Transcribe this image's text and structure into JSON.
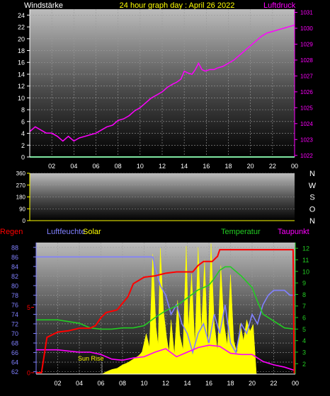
{
  "header": {
    "left_title": "Windstärke",
    "center_title": "24 hour graph day : April 26 2022",
    "right_title": "Luftdruck"
  },
  "colors": {
    "background": "#000000",
    "wind": "#00cc44",
    "pressure": "#ff00ff",
    "humidity": "#8080ff",
    "temperature": "#22cc22",
    "dewpoint": "#ff00ff",
    "rain": "#ff0000",
    "solar": "#ffff00",
    "axis_white": "#ffffff",
    "title_yellow": "#ffff00"
  },
  "chart_data": [
    {
      "type": "line",
      "title": "24 hour graph day : April 26 2022",
      "x_ticks": [
        "02",
        "04",
        "06",
        "08",
        "10",
        "12",
        "14",
        "16",
        "18",
        "20",
        "22",
        "00"
      ],
      "xlim": [
        0,
        24
      ],
      "left_axis": {
        "label": "Windstärke",
        "ticks": [
          0,
          2,
          4,
          6,
          8,
          10,
          12,
          14,
          16,
          18,
          20,
          22,
          24
        ],
        "ylim": [
          0,
          25
        ]
      },
      "right_axis": {
        "label": "Luftdruck",
        "ticks": [
          1022,
          1023,
          1024,
          1025,
          1026,
          1027,
          1028,
          1029,
          1030,
          1031
        ],
        "ylim": [
          1021.9,
          1031.2
        ]
      },
      "series": [
        {
          "name": "Windstärke",
          "axis": "left",
          "x": [
            0,
            24
          ],
          "y": [
            0,
            0
          ]
        },
        {
          "name": "Luftdruck",
          "axis": "right",
          "x": [
            0,
            0.5,
            1,
            1.5,
            2,
            2.5,
            3,
            3.5,
            4,
            4.5,
            5,
            5.5,
            6,
            6.5,
            7,
            7.5,
            8,
            8.5,
            9,
            9.5,
            10,
            10.5,
            11,
            11.5,
            12,
            12.5,
            13,
            13.3,
            13.7,
            14,
            14.3,
            14.7,
            15,
            15.3,
            15.6,
            15.9,
            16.3,
            16.7,
            17,
            17.5,
            18,
            18.5,
            19,
            19.5,
            20,
            20.5,
            21,
            21.5,
            22,
            22.5,
            23,
            23.5,
            24
          ],
          "y": [
            1023.5,
            1023.8,
            1023.6,
            1023.4,
            1023.4,
            1023.2,
            1022.9,
            1023.2,
            1022.9,
            1023.1,
            1023.2,
            1023.3,
            1023.4,
            1023.6,
            1023.8,
            1023.9,
            1024.2,
            1024.3,
            1024.5,
            1024.8,
            1025.0,
            1025.3,
            1025.6,
            1025.8,
            1026.0,
            1026.3,
            1026.5,
            1026.6,
            1026.8,
            1027.3,
            1027.2,
            1027.1,
            1027.4,
            1027.8,
            1027.4,
            1027.3,
            1027.4,
            1027.4,
            1027.5,
            1027.6,
            1027.8,
            1028.0,
            1028.3,
            1028.6,
            1028.9,
            1029.2,
            1029.5,
            1029.7,
            1029.8,
            1029.9,
            1030.0,
            1030.1,
            1030.2
          ]
        }
      ]
    },
    {
      "type": "scatter",
      "x_ticks": [],
      "xlim": [
        0,
        24
      ],
      "left_axis": {
        "label": "",
        "ticks": [
          0,
          90,
          180,
          270,
          360
        ],
        "ylim": [
          0,
          360
        ]
      },
      "right_labels": [
        "N",
        "W",
        "S",
        "O",
        "N"
      ],
      "series": []
    },
    {
      "type": "line",
      "x_ticks": [
        "02",
        "04",
        "06",
        "08",
        "10",
        "12",
        "14",
        "16",
        "18",
        "20",
        "22",
        "00"
      ],
      "xlim": [
        0,
        24
      ],
      "legend_top": {
        "rain": "Regen",
        "humidity": "Luftfeuchte",
        "solar": "Solar",
        "temperature": "Temperatur",
        "dewpoint": "Taupunkt"
      },
      "left_axis": {
        "label": "Luftfeuchte",
        "ticks": [
          62,
          64,
          66,
          68,
          70,
          72,
          74,
          76,
          78,
          80,
          82,
          84,
          86,
          88
        ],
        "ylim": [
          61.5,
          89
        ]
      },
      "right_axis": {
        "label": "Temperatur",
        "ticks": [
          2,
          3,
          4,
          5,
          6,
          7,
          8,
          9,
          10,
          11,
          12
        ],
        "ylim": [
          1.1,
          12.5
        ]
      },
      "rain_ticks": [
        "5",
        "0"
      ],
      "annotation": {
        "text": "Sun Rise",
        "x": 6.1
      },
      "series": [
        {
          "name": "Luftfeuchte",
          "axis": "left",
          "x": [
            0,
            4,
            8,
            10.8,
            11,
            11.5,
            12,
            12.5,
            13,
            13.5,
            14,
            14.5,
            15,
            15.5,
            16,
            16.5,
            17,
            17.5,
            18,
            18.5,
            19,
            19.5,
            20,
            20.5,
            21,
            21.5,
            22,
            22.5,
            23,
            23.5,
            24
          ],
          "y": [
            86,
            86,
            86,
            86,
            84,
            80,
            78,
            74,
            76,
            72,
            70,
            66,
            70,
            72,
            68,
            74,
            70,
            76,
            68,
            66,
            72,
            70,
            74,
            72,
            76,
            78,
            79,
            79,
            79,
            78,
            78
          ]
        },
        {
          "name": "Temperatur",
          "axis": "right",
          "x": [
            0,
            2,
            4,
            5,
            6,
            7,
            8,
            9,
            10,
            11,
            12,
            13,
            14,
            15,
            16,
            16.5,
            17,
            17.5,
            18,
            19,
            20,
            20.5,
            21,
            22,
            23,
            24
          ],
          "y": [
            5.8,
            5.8,
            5.5,
            5.1,
            5.0,
            5.0,
            5.1,
            5.1,
            5.3,
            6.0,
            6.6,
            7.0,
            7.7,
            8.4,
            8.8,
            9.4,
            10.1,
            10.4,
            10.4,
            9.6,
            8.6,
            7.4,
            6.3,
            5.7,
            5.1,
            5.0
          ]
        },
        {
          "name": "Taupunkt",
          "axis": "right",
          "x": [
            0,
            1,
            2,
            3,
            4,
            5,
            5.5,
            6,
            7,
            8,
            9,
            10,
            11,
            12,
            13,
            14,
            15,
            16,
            17,
            18,
            19,
            20,
            21,
            22,
            23,
            24
          ],
          "y": [
            3.2,
            3.2,
            3.2,
            3.1,
            3.0,
            3.0,
            2.9,
            2.8,
            2.4,
            2.3,
            2.5,
            2.6,
            3.0,
            3.3,
            2.6,
            3.0,
            3.4,
            3.6,
            3.5,
            2.9,
            2.8,
            2.8,
            2.2,
            1.9,
            1.7,
            1.4
          ]
        },
        {
          "name": "Regen",
          "axis": "rain",
          "x": [
            0,
            0.5,
            1,
            2,
            3,
            4,
            5,
            5.5,
            6,
            6.5,
            7,
            7.5,
            8,
            8.5,
            9,
            10,
            11,
            12,
            13,
            14,
            14.5,
            15,
            15.5,
            16,
            16.3,
            16.8,
            17,
            17.5,
            18,
            19,
            20,
            21,
            22,
            23,
            23.8,
            23.9,
            24
          ],
          "y": [
            0,
            0,
            2.7,
            3.1,
            3.2,
            3.4,
            3.4,
            3.6,
            4.2,
            4.6,
            4.7,
            4.8,
            5.3,
            5.8,
            6.8,
            7.3,
            7.4,
            7.6,
            7.7,
            7.7,
            7.7,
            8.2,
            8.5,
            8.5,
            8.5,
            8.9,
            9.4,
            9.4,
            9.4,
            9.4,
            9.4,
            9.4,
            9.4,
            9.4,
            9.4,
            0,
            0
          ]
        },
        {
          "name": "Solar",
          "axis": "right",
          "fill": true,
          "x": [
            6.1,
            6.5,
            7,
            7.5,
            8,
            8.5,
            9,
            9.5,
            9.8,
            10.2,
            10.5,
            10.8,
            11.1,
            11.3,
            11.5,
            11.8,
            12.1,
            12.3,
            12.5,
            12.8,
            13.1,
            13.3,
            13.6,
            13.9,
            14.1,
            14.4,
            14.7,
            15.0,
            15.3,
            15.6,
            15.9,
            16.2,
            16.5,
            16.8,
            17.1,
            17.4,
            17.7,
            18.0,
            18.3,
            18.6,
            18.9,
            19.2,
            19.5,
            19.8,
            20.1,
            20.4
          ],
          "y": [
            1.1,
            1.3,
            1.5,
            1.6,
            1.9,
            2.1,
            2.4,
            2.7,
            3.0,
            4.6,
            3.4,
            11.5,
            5.2,
            3.6,
            12.0,
            6.5,
            4.2,
            3.0,
            5.8,
            2.8,
            7.5,
            4.5,
            3.2,
            12.2,
            5.0,
            9.8,
            3.6,
            12.1,
            4.8,
            11.0,
            3.2,
            12.4,
            5.5,
            3.1,
            10.5,
            5.5,
            3.6,
            9.7,
            4.0,
            2.9,
            5.5,
            4.0,
            5.8,
            4.8,
            5.4,
            1.1
          ]
        }
      ]
    }
  ]
}
